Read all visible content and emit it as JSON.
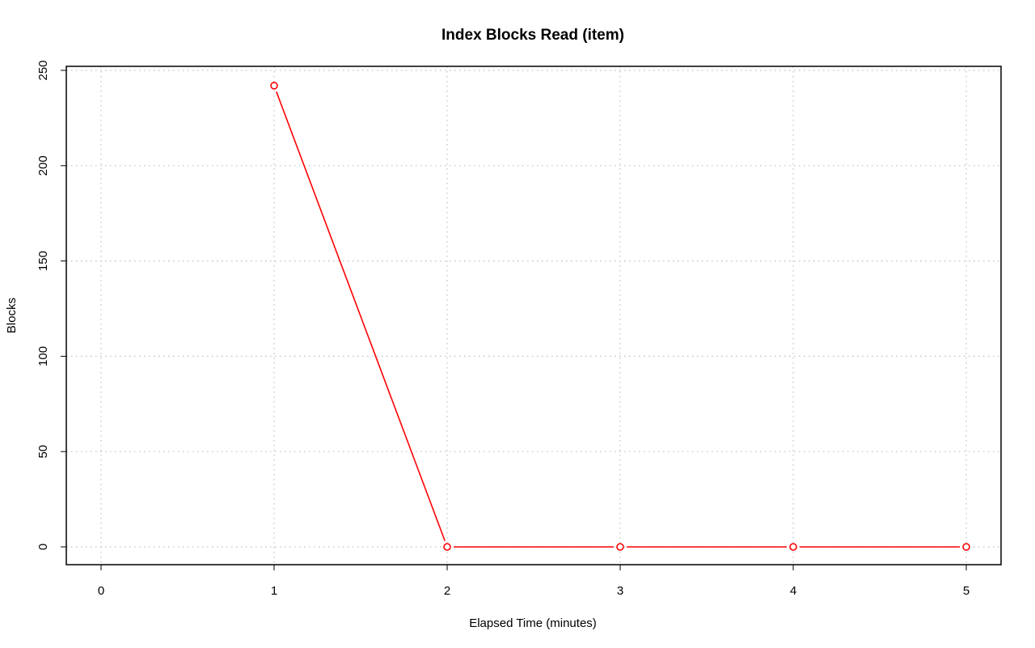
{
  "chart_data": {
    "type": "line",
    "title": "Index Blocks Read (item)",
    "xlabel": "Elapsed Time (minutes)",
    "ylabel": "Blocks",
    "xlim": [
      0,
      5
    ],
    "ylim": [
      0,
      250
    ],
    "x_ticks": [
      "0",
      "1",
      "2",
      "3",
      "4",
      "5"
    ],
    "y_ticks": [
      "0",
      "50",
      "100",
      "150",
      "200",
      "250"
    ],
    "grid": true,
    "series": [
      {
        "name": "item",
        "color": "#ff0000",
        "x": [
          1,
          2,
          3,
          4,
          5
        ],
        "values": [
          242,
          0,
          0,
          0,
          0
        ]
      }
    ]
  }
}
